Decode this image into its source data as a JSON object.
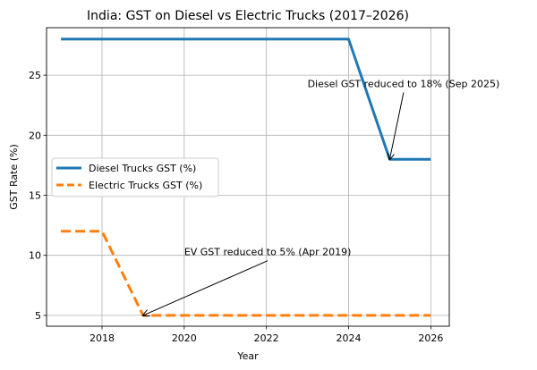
{
  "chart_data": {
    "type": "line",
    "title": "India: GST on Diesel vs Electric Trucks (2017–2026)",
    "xlabel": "Year",
    "ylabel": "GST Rate (%)",
    "xlim": [
      2016.65,
      2026.45
    ],
    "ylim": [
      4.1,
      28.95
    ],
    "xticks": [
      2018,
      2020,
      2022,
      2024,
      2026
    ],
    "yticks": [
      5,
      10,
      15,
      20,
      25
    ],
    "grid": true,
    "legend_position": "center-left",
    "series": [
      {
        "name": "Diesel Trucks GST (%)",
        "color": "#1f77b4",
        "style": "solid",
        "x": [
          2017,
          2018,
          2019,
          2020,
          2021,
          2022,
          2023,
          2024,
          2025,
          2026
        ],
        "values": [
          28,
          28,
          28,
          28,
          28,
          28,
          28,
          28,
          18,
          18
        ]
      },
      {
        "name": "Electric Trucks GST (%)",
        "color": "#ff7f0e",
        "style": "dashed",
        "x": [
          2017,
          2018,
          2019,
          2020,
          2021,
          2022,
          2023,
          2024,
          2025,
          2026
        ],
        "values": [
          12,
          12,
          5,
          5,
          5,
          5,
          5,
          5,
          5,
          5
        ]
      }
    ],
    "annotations": [
      {
        "text": "Diesel GST reduced to 18% (Sep 2025)",
        "point": [
          2025,
          18
        ],
        "text_at": [
          2023,
          24
        ]
      },
      {
        "text": "EV GST reduced to 5% (Apr 2019)",
        "point": [
          2019,
          5
        ],
        "text_at": [
          2020,
          10
        ]
      }
    ]
  }
}
